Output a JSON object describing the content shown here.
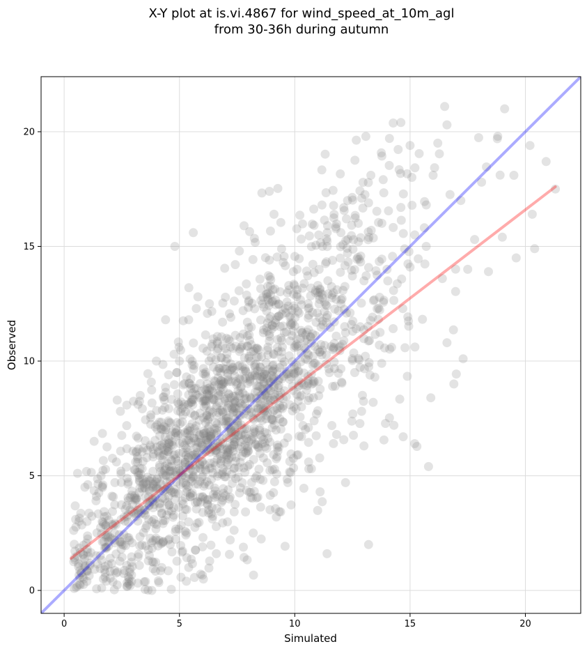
{
  "chart_data": {
    "type": "scatter",
    "title_lines": [
      "X-Y plot at is.vi.4867 for wind_speed_at_10m_agl",
      "from 30-36h during autumn"
    ],
    "xlabel": "Simulated",
    "ylabel": "Observed",
    "xlim": [
      -1.0,
      22.4
    ],
    "ylim": [
      -1.0,
      22.4
    ],
    "xticks": [
      0,
      5,
      10,
      15,
      20
    ],
    "yticks": [
      0,
      5,
      10,
      15,
      20
    ],
    "grid": true,
    "point_color": "#7f7f7f",
    "point_alpha": 0.22,
    "point_count": 1900,
    "reference_line": {
      "color": "#0000ff",
      "x": [
        -1.0,
        22.4
      ],
      "y": [
        -1.0,
        22.4
      ]
    },
    "fit_line": {
      "color": "#ff0000",
      "x": [
        0.3,
        21.3
      ],
      "y": [
        1.4,
        17.6
      ]
    },
    "sample_points": [
      [
        19.1,
        21.0
      ],
      [
        16.5,
        21.1
      ],
      [
        14.6,
        20.4
      ],
      [
        16.6,
        20.3
      ],
      [
        15.0,
        19.4
      ],
      [
        16.2,
        19.5
      ],
      [
        18.8,
        19.8
      ],
      [
        20.2,
        19.4
      ],
      [
        8.9,
        17.4
      ],
      [
        13.3,
        18.1
      ],
      [
        16.0,
        18.1
      ],
      [
        20.9,
        18.7
      ],
      [
        21.3,
        17.5
      ],
      [
        17.2,
        17.0
      ],
      [
        18.1,
        17.8
      ],
      [
        19.5,
        18.1
      ],
      [
        5.6,
        15.6
      ],
      [
        4.8,
        15.0
      ],
      [
        7.8,
        15.9
      ],
      [
        9.1,
        16.4
      ],
      [
        14.6,
        16.7
      ],
      [
        20.3,
        16.4
      ],
      [
        20.4,
        14.9
      ],
      [
        19.6,
        14.5
      ],
      [
        17.3,
        10.1
      ],
      [
        16.9,
        9.0
      ],
      [
        15.9,
        8.4
      ],
      [
        15.8,
        5.4
      ],
      [
        15.2,
        6.4
      ],
      [
        11.4,
        1.6
      ],
      [
        13.2,
        2.0
      ],
      [
        3.8,
        0.0
      ],
      [
        5.3,
        0.4
      ],
      [
        5.4,
        1.0
      ],
      [
        1.7,
        0.5
      ],
      [
        2.3,
        8.3
      ],
      [
        3.3,
        8.5
      ],
      [
        1.3,
        6.5
      ],
      [
        1.6,
        5.0
      ],
      [
        4.0,
        10.0
      ],
      [
        4.4,
        11.8
      ],
      [
        5.0,
        10.0
      ],
      [
        5.4,
        11.8
      ],
      [
        5.8,
        12.8
      ],
      [
        6.3,
        12.5
      ],
      [
        7.6,
        14.8
      ],
      [
        8.9,
        14.4
      ],
      [
        9.5,
        14.3
      ],
      [
        10.1,
        14.0
      ],
      [
        11.2,
        15.0
      ],
      [
        12.0,
        15.6
      ],
      [
        12.9,
        17.1
      ],
      [
        13.2,
        16.9
      ],
      [
        12.4,
        12.1
      ],
      [
        11.7,
        10.6
      ],
      [
        12.6,
        9.5
      ],
      [
        13.4,
        8.2
      ],
      [
        14.3,
        7.2
      ],
      [
        14.7,
        6.7
      ],
      [
        13.0,
        6.3
      ],
      [
        12.2,
        4.7
      ],
      [
        11.1,
        4.3
      ],
      [
        10.6,
        5.6
      ],
      [
        9.7,
        4.7
      ],
      [
        9.2,
        3.2
      ],
      [
        8.2,
        2.5
      ],
      [
        7.2,
        2.2
      ],
      [
        6.6,
        1.6
      ],
      [
        6.0,
        1.9
      ],
      [
        4.6,
        2.0
      ],
      [
        3.8,
        3.0
      ],
      [
        2.8,
        2.3
      ],
      [
        2.0,
        1.4
      ],
      [
        1.0,
        1.8
      ],
      [
        0.5,
        3.1
      ],
      [
        0.9,
        4.5
      ],
      [
        1.4,
        4.1
      ],
      [
        2.2,
        4.7
      ],
      [
        3.1,
        5.6
      ],
      [
        4.3,
        7.0
      ],
      [
        5.2,
        8.0
      ],
      [
        6.2,
        9.0
      ],
      [
        7.3,
        9.7
      ],
      [
        8.1,
        10.4
      ],
      [
        9.0,
        11.4
      ],
      [
        10.0,
        12.3
      ],
      [
        11.0,
        13.0
      ],
      [
        12.0,
        12.5
      ],
      [
        13.0,
        13.5
      ],
      [
        14.0,
        14.0
      ],
      [
        15.0,
        14.1
      ],
      [
        15.7,
        15.0
      ],
      [
        16.4,
        13.6
      ],
      [
        17.5,
        14.0
      ],
      [
        18.4,
        13.9
      ],
      [
        19.0,
        15.4
      ],
      [
        17.8,
        15.3
      ],
      [
        16.6,
        10.8
      ],
      [
        14.2,
        10.6
      ],
      [
        9.9,
        8.9
      ]
    ]
  }
}
